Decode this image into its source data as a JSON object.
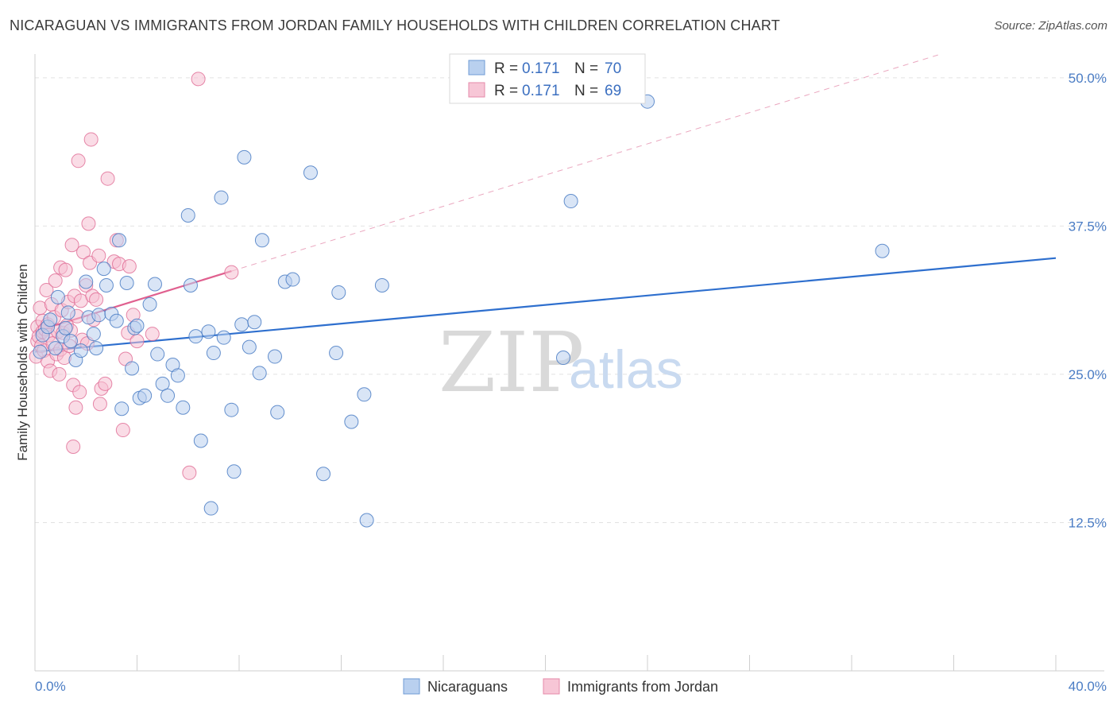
{
  "header": {
    "title": "NICARAGUAN VS IMMIGRANTS FROM JORDAN FAMILY HOUSEHOLDS WITH CHILDREN CORRELATION CHART",
    "source": "Source: ZipAtlas.com"
  },
  "legend": {
    "row1": {
      "r_label": "R =",
      "r_value": "0.171",
      "n_label": "N =",
      "n_value": "70"
    },
    "row2": {
      "r_label": "R =",
      "r_value": "0.171",
      "n_label": "N =",
      "n_value": "69"
    }
  },
  "bottom_legend": {
    "series1": "Nicaraguans",
    "series2": "Immigrants from Jordan"
  },
  "watermark": {
    "zip": "ZIP",
    "atlas": "atlas"
  },
  "colors": {
    "blue": "#4a7cc4",
    "blue_fill": "#b9d0ef",
    "pink": "#e06a94",
    "pink_fill": "#f5bfd1",
    "blue_line": "#2e6fce",
    "pink_line": "#e0608f"
  },
  "chart_data": {
    "type": "scatter",
    "xlabel": "",
    "ylabel": "Family Households with Children",
    "xlim": [
      0,
      40
    ],
    "ylim": [
      0,
      52
    ],
    "x_tick_labels": [
      "0.0%",
      "40.0%"
    ],
    "y_ticks": [
      12.5,
      25.0,
      37.5,
      50.0
    ],
    "y_tick_labels": [
      "12.5%",
      "25.0%",
      "37.5%",
      "50.0%"
    ],
    "grid": true,
    "legend_position": "top-center",
    "series": [
      {
        "name": "Nicaraguans",
        "color": "#4a7cc4",
        "trend": {
          "x": [
            0,
            40
          ],
          "y": [
            26.9,
            34.8
          ]
        },
        "points": [
          [
            0.2,
            26.9
          ],
          [
            0.3,
            28.3
          ],
          [
            0.5,
            29.0
          ],
          [
            0.6,
            29.6
          ],
          [
            0.8,
            27.2
          ],
          [
            0.9,
            31.5
          ],
          [
            1.1,
            28.2
          ],
          [
            1.2,
            28.9
          ],
          [
            1.3,
            30.2
          ],
          [
            1.4,
            27.8
          ],
          [
            1.6,
            26.2
          ],
          [
            1.8,
            27.0
          ],
          [
            2.0,
            32.8
          ],
          [
            2.1,
            29.8
          ],
          [
            2.3,
            28.4
          ],
          [
            2.4,
            27.2
          ],
          [
            2.5,
            30.0
          ],
          [
            2.7,
            33.9
          ],
          [
            2.8,
            32.5
          ],
          [
            3.0,
            30.1
          ],
          [
            3.2,
            29.5
          ],
          [
            3.3,
            36.3
          ],
          [
            3.4,
            22.1
          ],
          [
            3.6,
            32.7
          ],
          [
            3.8,
            25.5
          ],
          [
            3.9,
            28.9
          ],
          [
            4.0,
            29.1
          ],
          [
            4.1,
            23.0
          ],
          [
            4.3,
            23.2
          ],
          [
            4.5,
            30.9
          ],
          [
            4.7,
            32.6
          ],
          [
            4.8,
            26.7
          ],
          [
            5.0,
            24.2
          ],
          [
            5.2,
            23.2
          ],
          [
            5.4,
            25.8
          ],
          [
            5.6,
            24.9
          ],
          [
            5.8,
            22.2
          ],
          [
            6.0,
            38.4
          ],
          [
            6.1,
            32.5
          ],
          [
            6.3,
            28.2
          ],
          [
            6.5,
            19.4
          ],
          [
            6.8,
            28.6
          ],
          [
            6.9,
            13.7
          ],
          [
            7.0,
            26.8
          ],
          [
            7.3,
            39.9
          ],
          [
            7.4,
            28.1
          ],
          [
            7.7,
            22.0
          ],
          [
            7.8,
            16.8
          ],
          [
            8.1,
            29.2
          ],
          [
            8.2,
            43.3
          ],
          [
            8.4,
            27.3
          ],
          [
            8.6,
            29.4
          ],
          [
            8.8,
            25.1
          ],
          [
            8.9,
            36.3
          ],
          [
            9.4,
            26.5
          ],
          [
            9.5,
            21.8
          ],
          [
            9.8,
            32.8
          ],
          [
            10.1,
            33.0
          ],
          [
            10.8,
            42.0
          ],
          [
            11.3,
            16.6
          ],
          [
            11.8,
            26.8
          ],
          [
            11.9,
            31.9
          ],
          [
            12.4,
            21.0
          ],
          [
            12.9,
            23.3
          ],
          [
            13.0,
            12.7
          ],
          [
            13.6,
            32.5
          ],
          [
            20.7,
            26.4
          ],
          [
            21.0,
            39.6
          ],
          [
            24.0,
            48.0
          ],
          [
            33.2,
            35.4
          ]
        ]
      },
      {
        "name": "Immigrants from Jordan",
        "color": "#e06a94",
        "trend": {
          "x": [
            0,
            7.7
          ],
          "y": [
            28.6,
            33.7
          ]
        },
        "trend_ext": {
          "x": [
            7.7,
            35.5
          ],
          "y": [
            33.7,
            52.0
          ]
        },
        "points": [
          [
            0.05,
            26.5
          ],
          [
            0.1,
            27.8
          ],
          [
            0.1,
            29.0
          ],
          [
            0.15,
            28.2
          ],
          [
            0.2,
            30.6
          ],
          [
            0.25,
            27.4
          ],
          [
            0.3,
            29.5
          ],
          [
            0.3,
            28.6
          ],
          [
            0.35,
            27.0
          ],
          [
            0.4,
            28.8
          ],
          [
            0.45,
            32.1
          ],
          [
            0.5,
            29.2
          ],
          [
            0.5,
            26.1
          ],
          [
            0.55,
            28.3
          ],
          [
            0.6,
            25.3
          ],
          [
            0.65,
            30.9
          ],
          [
            0.7,
            27.6
          ],
          [
            0.75,
            29.8
          ],
          [
            0.8,
            32.9
          ],
          [
            0.85,
            26.7
          ],
          [
            0.9,
            28.6
          ],
          [
            0.95,
            25.0
          ],
          [
            1.0,
            34.0
          ],
          [
            1.0,
            27.1
          ],
          [
            1.05,
            30.4
          ],
          [
            1.1,
            28.5
          ],
          [
            1.15,
            26.4
          ],
          [
            1.2,
            33.8
          ],
          [
            1.25,
            29.1
          ],
          [
            1.3,
            31.1
          ],
          [
            1.35,
            27.4
          ],
          [
            1.4,
            28.7
          ],
          [
            1.45,
            35.9
          ],
          [
            1.5,
            24.1
          ],
          [
            1.5,
            18.9
          ],
          [
            1.55,
            31.6
          ],
          [
            1.6,
            22.2
          ],
          [
            1.65,
            29.9
          ],
          [
            1.7,
            43.0
          ],
          [
            1.75,
            23.5
          ],
          [
            1.8,
            31.2
          ],
          [
            1.85,
            27.9
          ],
          [
            1.9,
            35.3
          ],
          [
            2.0,
            32.5
          ],
          [
            2.05,
            27.6
          ],
          [
            2.1,
            37.7
          ],
          [
            2.15,
            34.4
          ],
          [
            2.2,
            44.8
          ],
          [
            2.25,
            31.6
          ],
          [
            2.3,
            29.6
          ],
          [
            2.4,
            31.3
          ],
          [
            2.5,
            35.0
          ],
          [
            2.55,
            22.5
          ],
          [
            2.6,
            23.8
          ],
          [
            2.75,
            24.2
          ],
          [
            2.85,
            41.5
          ],
          [
            3.1,
            34.5
          ],
          [
            3.2,
            36.3
          ],
          [
            3.3,
            34.3
          ],
          [
            3.45,
            20.3
          ],
          [
            3.55,
            26.3
          ],
          [
            3.65,
            28.5
          ],
          [
            3.7,
            34.1
          ],
          [
            3.85,
            30.0
          ],
          [
            4.0,
            27.8
          ],
          [
            4.6,
            28.4
          ],
          [
            6.05,
            16.7
          ],
          [
            6.4,
            49.9
          ],
          [
            7.7,
            33.6
          ]
        ]
      }
    ]
  }
}
